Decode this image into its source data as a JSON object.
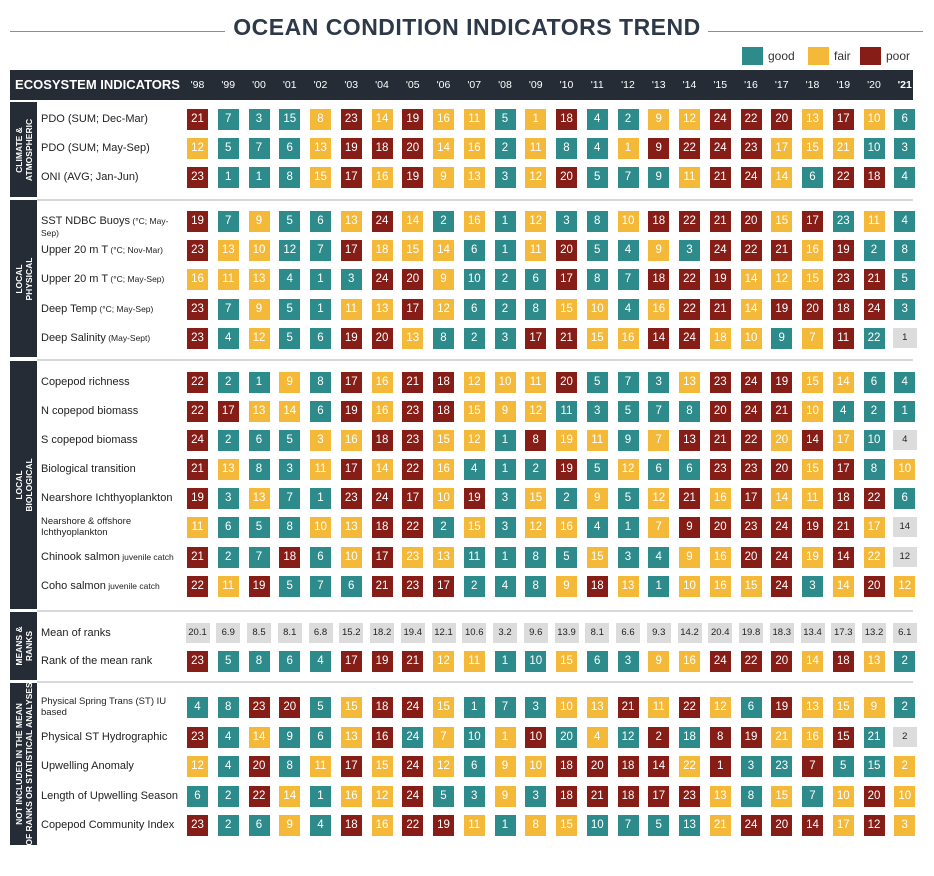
{
  "title": "OCEAN CONDITION INDICATORS TREND",
  "legend": [
    {
      "label": "good",
      "color": "#2e8b8b"
    },
    {
      "label": "fair",
      "color": "#f5b93a"
    },
    {
      "label": "poor",
      "color": "#861d17"
    }
  ],
  "header": {
    "title": "ECOSYSTEM INDICATORS"
  },
  "chart_data": {
    "type": "table",
    "years": [
      "'98",
      "'99",
      "'00",
      "'01",
      "'02",
      "'03",
      "'04",
      "'05",
      "'06",
      "'07",
      "'08",
      "'09",
      "'10",
      "'11",
      "'12",
      "'13",
      "'14",
      "'15",
      "'16",
      "'17",
      "'18",
      "'19",
      "'20",
      "'21"
    ],
    "color_key": {
      "g": "good",
      "f": "fair",
      "p": "poor"
    },
    "sections": [
      {
        "label": "CLIMATE & ATMOSPHERIC",
        "rows": [
          {
            "name": "PDO (SUM; Dec-Mar)",
            "values": [
              21,
              7,
              3,
              15,
              8,
              23,
              14,
              19,
              16,
              11,
              5,
              1,
              18,
              4,
              2,
              9,
              12,
              24,
              22,
              20,
              13,
              17,
              10,
              6
            ],
            "colors": "pgggfpfpffgfpggffpppfpfg"
          },
          {
            "name": "PDO (SUM; May-Sep)",
            "values": [
              12,
              5,
              7,
              6,
              13,
              19,
              18,
              20,
              14,
              16,
              2,
              11,
              8,
              4,
              1,
              9,
              22,
              24,
              23,
              17,
              15,
              21,
              10,
              3
            ],
            "colors": "fgggfpppffgfggfppppfffgg"
          },
          {
            "name": "ONI (AVG; Jan-Jun)",
            "values": [
              23,
              1,
              1,
              8,
              15,
              17,
              16,
              19,
              9,
              13,
              3,
              12,
              20,
              5,
              7,
              9,
              11,
              21,
              24,
              14,
              6,
              22,
              18,
              4
            ],
            "colors": "pgggfpfpffgfpgggfppfgppg"
          }
        ]
      },
      {
        "label": "LOCAL PHYSICAL",
        "rows": [
          {
            "name": "SST NDBC Buoys",
            "unit": "(°C; May-Sep)",
            "values": [
              19,
              7,
              9,
              5,
              6,
              13,
              24,
              14,
              2,
              16,
              1,
              12,
              3,
              8,
              10,
              18,
              22,
              21,
              20,
              15,
              17,
              23,
              11,
              4
            ],
            "colors": "pgfggfpfgfgfggfppppfpgfg"
          },
          {
            "name": "Upper 20 m T",
            "unit": "(°C; Nov-Mar)",
            "values": [
              23,
              13,
              10,
              12,
              7,
              17,
              18,
              15,
              14,
              6,
              1,
              11,
              20,
              5,
              4,
              9,
              3,
              24,
              22,
              21,
              16,
              19,
              2,
              8
            ],
            "colors": "pffggpfffggfpggfgpppfpgg"
          },
          {
            "name": "Upper 20 m T",
            "unit": "(°C; May-Sep)",
            "values": [
              16,
              11,
              13,
              4,
              1,
              3,
              24,
              20,
              9,
              10,
              2,
              6,
              17,
              8,
              7,
              18,
              22,
              19,
              14,
              12,
              15,
              23,
              21,
              5
            ],
            "colors": "fffgggppfgggpggpppfffppg"
          },
          {
            "name": "Deep Temp",
            "unit": "(°C; May-Sep)",
            "values": [
              23,
              7,
              9,
              5,
              1,
              11,
              13,
              17,
              12,
              6,
              2,
              8,
              15,
              10,
              4,
              16,
              22,
              21,
              14,
              19,
              20,
              18,
              24,
              3
            ],
            "colors": "pgfggffpfgggffgfppfppppg"
          },
          {
            "name": "Deep Salinity",
            "unit": "(May-Sept)",
            "values": [
              23,
              4,
              12,
              5,
              6,
              19,
              20,
              13,
              8,
              2,
              3,
              17,
              21,
              15,
              16,
              14,
              24,
              18,
              10,
              9,
              7,
              11,
              22,
              1
            ],
            "colors": "pgfggppfgggppffppffgfpg"
          }
        ]
      },
      {
        "label": "LOCAL BIOLOGICAL",
        "rows": [
          {
            "name": "Copepod richness",
            "values": [
              22,
              2,
              1,
              9,
              8,
              17,
              16,
              21,
              18,
              12,
              10,
              11,
              20,
              5,
              7,
              3,
              13,
              23,
              24,
              19,
              15,
              14,
              6,
              4
            ],
            "colors": "pggfgpfppfffpgggfpppffgg"
          },
          {
            "name": "N copepod biomass",
            "values": [
              22,
              17,
              13,
              14,
              6,
              19,
              16,
              23,
              18,
              15,
              9,
              12,
              11,
              3,
              5,
              7,
              8,
              20,
              24,
              21,
              10,
              4,
              2,
              1
            ],
            "colors": "ppffgpfppfffgggggpppfggg"
          },
          {
            "name": "S copepod biomass",
            "values": [
              24,
              2,
              6,
              5,
              3,
              16,
              18,
              23,
              15,
              12,
              1,
              8,
              19,
              11,
              9,
              7,
              13,
              21,
              22,
              20,
              14,
              17,
              10,
              4
            ],
            "colors": "pgggffppfftgpffgfpppfpfg"
          },
          {
            "name": "Biological transition",
            "values": [
              21,
              13,
              8,
              3,
              11,
              17,
              14,
              22,
              16,
              4,
              1,
              2,
              19,
              5,
              12,
              6,
              6,
              23,
              23,
              20,
              15,
              17,
              8,
              10
            ],
            "colors": "pfggfpfpfgggpgfggpppfpgf"
          },
          {
            "name": "Nearshore Ichthyoplankton",
            "values": [
              19,
              3,
              13,
              7,
              1,
              23,
              24,
              17,
              10,
              19,
              3,
              15,
              2,
              9,
              5,
              12,
              21,
              16,
              17,
              14,
              11,
              18,
              22,
              6
            ],
            "colors": "pgfggpppfpgfgfgfpfpffppg"
          },
          {
            "name": "Nearshore & offshore Ichthyoplankton",
            "small": true,
            "values": [
              11,
              6,
              5,
              8,
              10,
              13,
              18,
              22,
              2,
              15,
              3,
              12,
              16,
              4,
              1,
              7,
              9,
              20,
              23,
              24,
              19,
              21,
              17,
              14
            ],
            "colors": "fgggffppgfgffggfppppppf"
          },
          {
            "name": "Chinook salmon",
            "unit": "juvenile catch",
            "values": [
              21,
              2,
              7,
              18,
              6,
              10,
              17,
              23,
              13,
              11,
              1,
              8,
              5,
              15,
              3,
              4,
              9,
              16,
              20,
              24,
              19,
              14,
              22,
              12
            ],
            "colors": "pggpgfpffggggfggffppfpf"
          },
          {
            "name": "Coho salmon",
            "unit": "juvenile catch",
            "values": [
              22,
              11,
              19,
              5,
              7,
              6,
              21,
              23,
              17,
              2,
              4,
              8,
              9,
              18,
              13,
              1,
              10,
              16,
              15,
              24,
              3,
              14,
              20,
              12
            ],
            "colors": "pfpgggpppgggfpfgfffpgfpf"
          }
        ]
      },
      {
        "label": "MEANS & RANKS",
        "rows": [
          {
            "name": "Mean of ranks",
            "values": [
              20.1,
              6.9,
              8.5,
              8.1,
              6.8,
              15.2,
              18.2,
              19.4,
              12.1,
              10.6,
              3.2,
              9.6,
              13.9,
              8.1,
              6.6,
              9.3,
              14.2,
              20.4,
              19.8,
              18.3,
              13.4,
              17.3,
              13.2,
              6.1
            ],
            "colors": "mmmmmmmmmmmmmmmmmmmmmmmm"
          },
          {
            "name": "Rank of the mean rank",
            "values": [
              23,
              5,
              8,
              6,
              4,
              17,
              19,
              21,
              12,
              11,
              1,
              10,
              15,
              6,
              3,
              9,
              16,
              24,
              22,
              20,
              14,
              18,
              13,
              2
            ],
            "colors": "pgggg pppffggfggffpppfpfg"
          }
        ]
      },
      {
        "label": "NOT INCLUDED IN THE MEAN OF RANKS OR STATISTICAL ANALYSES",
        "rows": [
          {
            "name": "Physical Spring Trans (ST) IU based",
            "small": true,
            "values": [
              4,
              8,
              23,
              20,
              5,
              15,
              18,
              24,
              15,
              1,
              7,
              3,
              10,
              13,
              21,
              11,
              22,
              12,
              6,
              19,
              13,
              15,
              9,
              2
            ],
            "colors": "ggppgfppfggg ffpfpfgpfffg"
          },
          {
            "name": "Physical ST Hydrographic",
            "values": [
              23,
              4,
              14,
              9,
              6,
              13,
              16,
              24,
              7,
              10,
              1,
              10,
              20,
              4,
              12,
              2,
              18,
              8,
              19,
              21,
              16,
              15,
              21,
              2
            ],
            "colors": "pgfggfpgfgfpgfgpgppffpg"
          },
          {
            "name": "Upwelling Anomaly",
            "values": [
              12,
              4,
              20,
              8,
              11,
              17,
              15,
              24,
              12,
              6,
              9,
              10,
              18,
              20,
              18,
              14,
              22,
              1,
              3,
              23,
              7,
              5,
              15,
              2
            ],
            "colors": "fgpgfpfpfgffppppfpggpggfg"
          },
          {
            "name": "Length of Upwelling Season",
            "values": [
              6,
              2,
              22,
              14,
              1,
              16,
              12,
              24,
              5,
              3,
              9,
              3,
              18,
              21,
              18,
              17,
              23,
              13,
              8,
              15,
              7,
              10,
              20,
              10
            ],
            "colors": "ggpfgffpggfgpppppfgfgfpf"
          },
          {
            "name": "Copepod Community Index",
            "values": [
              23,
              2,
              6,
              9,
              4,
              18,
              16,
              22,
              19,
              11,
              1,
              8,
              15,
              10,
              7,
              5,
              13,
              21,
              24,
              20,
              14,
              17,
              12,
              3
            ],
            "colors": "pggfgpfppfgffggggfpppfpfg"
          }
        ]
      }
    ]
  }
}
